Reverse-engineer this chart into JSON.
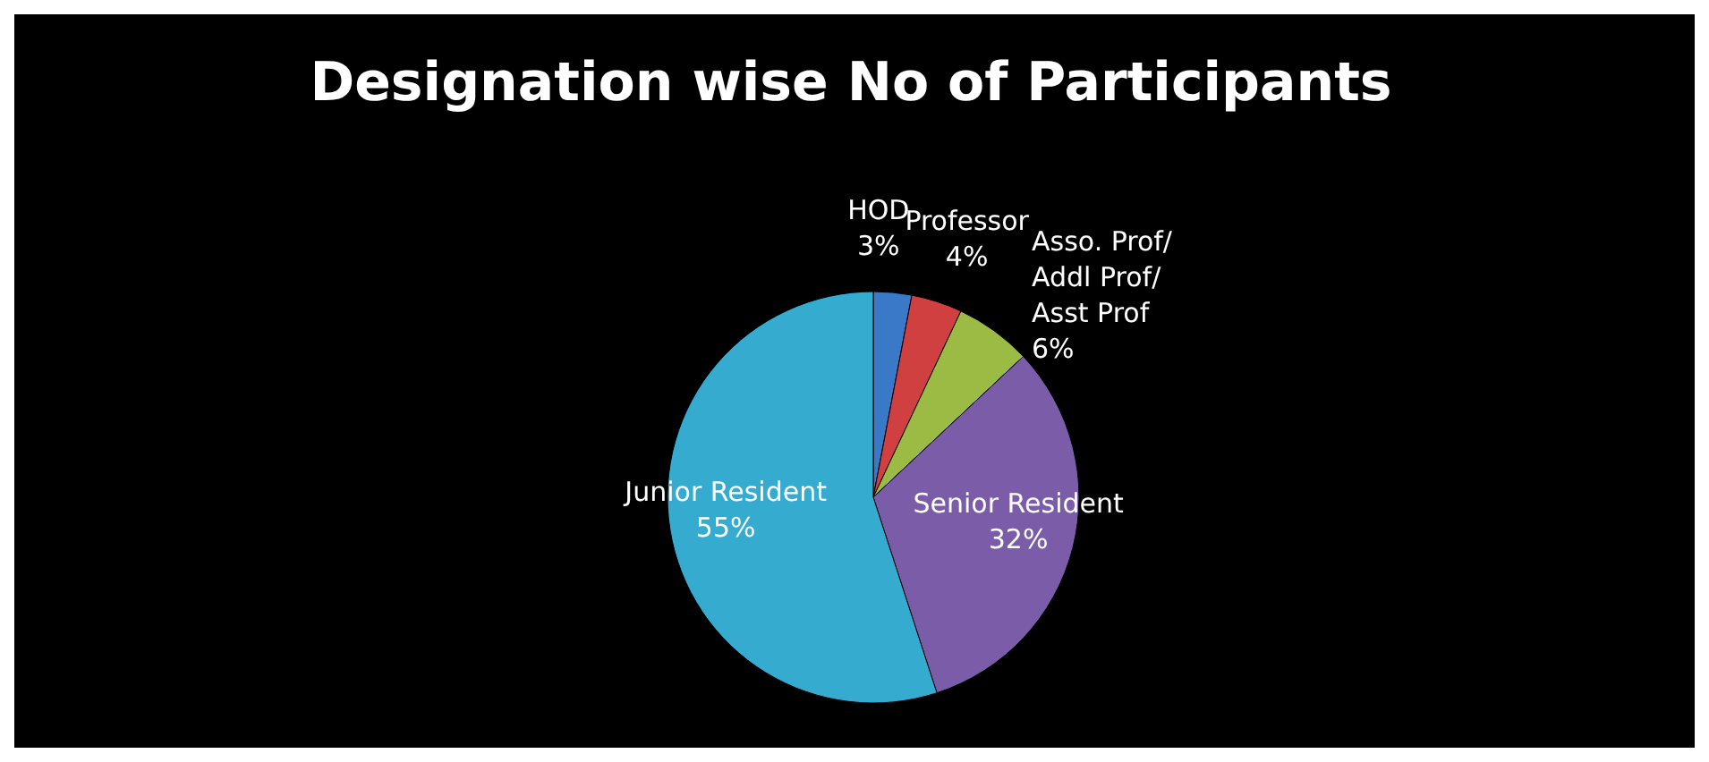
{
  "chart_data": {
    "type": "pie",
    "title": "Designation wise No of Participants",
    "categories": [
      "HOD",
      "Professor",
      "Asso. Prof/ Addl Prof/ Asst Prof",
      "Senior Resident",
      "Junior Resident"
    ],
    "values": [
      3,
      4,
      6,
      32,
      55
    ],
    "colors": [
      "#3a78c8",
      "#d04040",
      "#9bbb45",
      "#7b5ca8",
      "#35abd0"
    ],
    "value_labels": [
      "3%",
      "4%",
      "6%",
      "32%",
      "55%"
    ]
  }
}
